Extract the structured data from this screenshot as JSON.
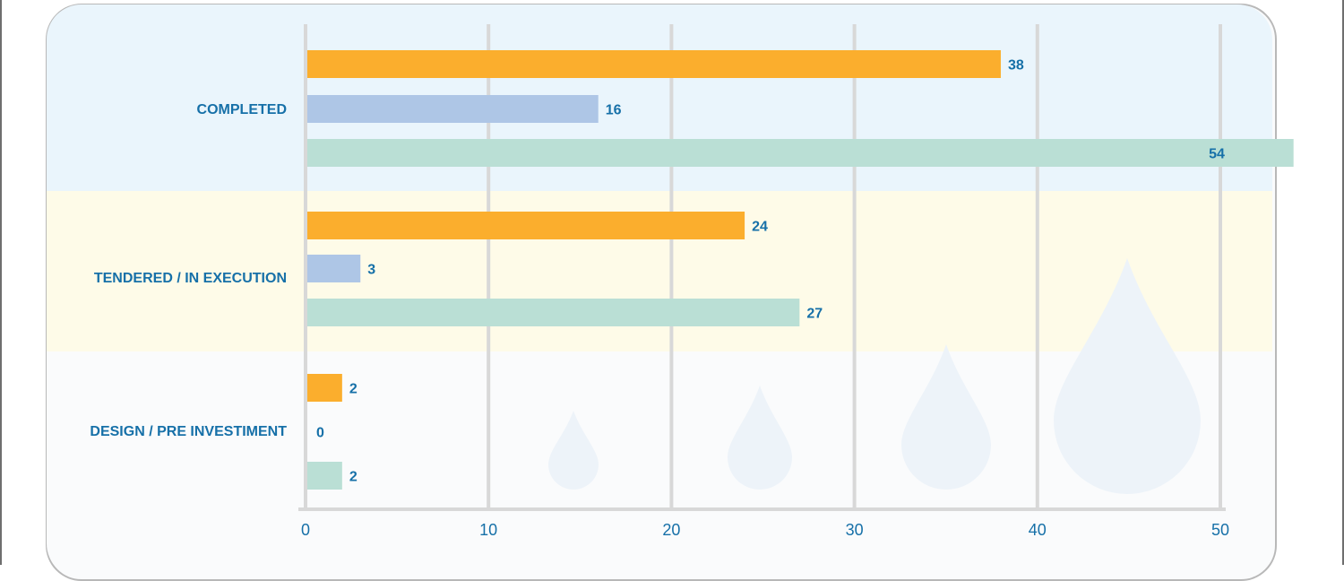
{
  "colors": {
    "series": [
      "#FBAE2D",
      "#AEC6E6",
      "#BADFD5"
    ],
    "text": "#1670A8",
    "grid": "#D8D8D8",
    "band_bg": [
      "#EAF5FC",
      "#FEFBE8",
      "#FAFBFC"
    ],
    "drop": "#EDF3F9"
  },
  "chart_data": {
    "type": "bar",
    "orientation": "horizontal",
    "categories": [
      "COMPLETED",
      "TENDERED / IN EXECUTION",
      "DESIGN / PRE INVESTIMENT"
    ],
    "series": [
      {
        "values": [
          38,
          24,
          2
        ]
      },
      {
        "values": [
          16,
          3,
          0
        ]
      },
      {
        "values": [
          54,
          27,
          2
        ]
      }
    ],
    "xlim": [
      0,
      50
    ],
    "xticks": [
      0,
      10,
      20,
      30,
      40,
      50
    ],
    "grid": true,
    "title": "",
    "xlabel": "",
    "ylabel": ""
  }
}
